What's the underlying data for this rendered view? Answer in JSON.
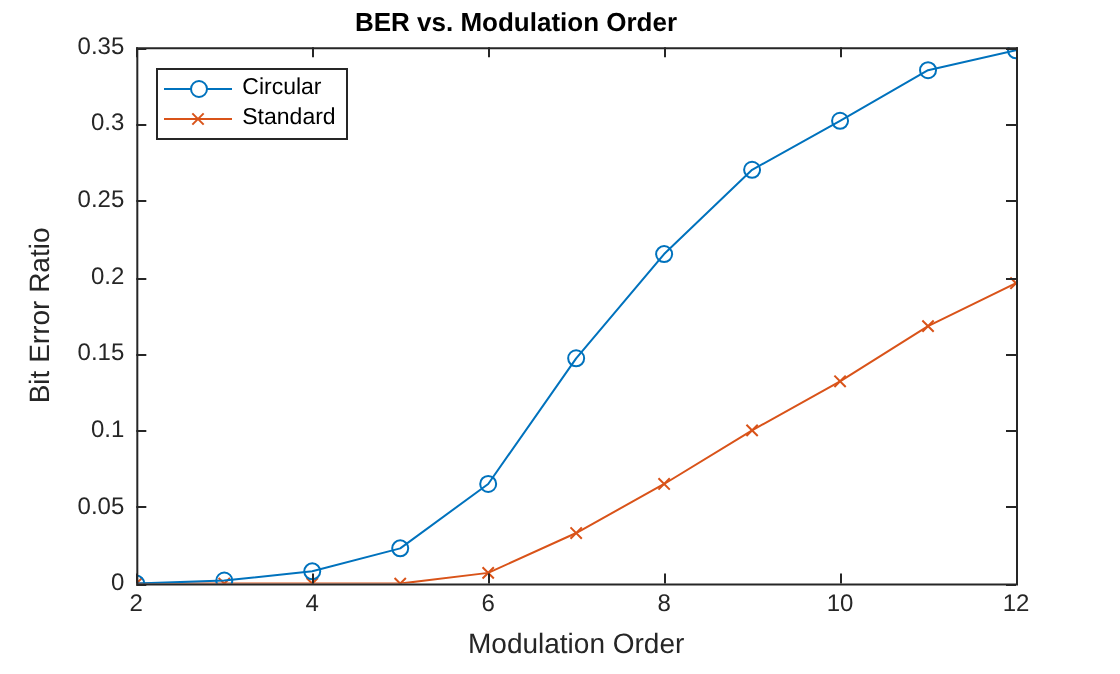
{
  "chart_data": {
    "type": "line",
    "title": "BER vs. Modulation Order",
    "xlabel": "Modulation Order",
    "ylabel": "Bit Error Ratio",
    "x": [
      2,
      3,
      4,
      5,
      6,
      7,
      8,
      9,
      10,
      11,
      12
    ],
    "series": [
      {
        "name": "Circular",
        "color": "#0072bd",
        "marker": "circle",
        "values": [
          0,
          0.002,
          0.008,
          0.023,
          0.065,
          0.147,
          0.215,
          0.27,
          0.302,
          0.335,
          0.348
        ]
      },
      {
        "name": "Standard",
        "color": "#d95319",
        "marker": "cross",
        "values": [
          0,
          0,
          0,
          0,
          0.007,
          0.033,
          0.065,
          0.1,
          0.132,
          0.168,
          0.196
        ]
      }
    ],
    "xlim": [
      2,
      12
    ],
    "xticks": [
      2,
      4,
      6,
      8,
      10,
      12
    ],
    "ylim": [
      0,
      0.35
    ],
    "yticks": [
      0,
      0.05,
      0.1,
      0.15,
      0.2,
      0.25,
      0.3,
      0.35
    ],
    "grid": false,
    "legend": "top left",
    "line_style": "solid"
  }
}
